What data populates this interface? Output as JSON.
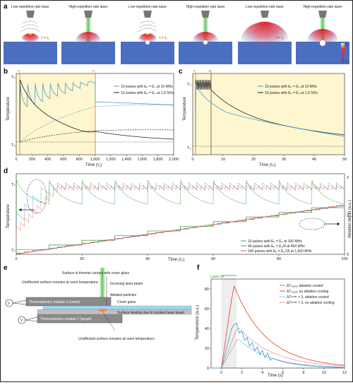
{
  "panel_a": {
    "label": "a",
    "titles": [
      "Low-repetition-rate laser",
      "High-repetition-rate laser",
      "Low-repetition-rate laser",
      "High-repetition-rate laser",
      "Low-repetition-rate laser",
      "High-repetition-rate laser"
    ],
    "t1": "t = τ₁",
    "t2": "t = τ₂",
    "legend_top": "Tₙ",
    "legend_bottom": "T₀"
  },
  "panel_b": {
    "label": "b",
    "ylabel": "Temperature",
    "xlabel": "Time (τ₁)",
    "y_top": "Tₙ",
    "y_bottom": "T₀",
    "tau1": "τ₁",
    "tau2": "τ₂",
    "xticks": [
      "0",
      "200",
      "400",
      "600",
      "800",
      "1,000",
      "1,200",
      "1,400",
      "1,600",
      "1,800",
      "2,000"
    ],
    "legend": [
      "10 pulses with Eₚ = E₀ at 10 MHz",
      "10 pulses with Eₚ = E₀ at 1.0 GHz"
    ]
  },
  "panel_c": {
    "label": "c",
    "ylabel": "Temperature",
    "xlabel": "Time (τ₂)",
    "y_top": "Tₙ",
    "y_bottom": "T₀",
    "tau1": "τ₁",
    "tau2": "τ₂",
    "xticks": [
      "0",
      "10",
      "20",
      "30",
      "40",
      "50"
    ],
    "legend": [
      "10 pulses with Eₚ = E₀ at 10 MHz",
      "10 pulses with Eₚ = E₀ at 1.0 GHz"
    ]
  },
  "panel_d": {
    "label": "d",
    "ylabel": "Temperature",
    "ylabel2": "Ablation depth (a.u.)",
    "xlabel": "Time (τ₂)",
    "y_top": "Tₙ",
    "y_bottom": "T₀",
    "xticks": [
      "0",
      "20",
      "40",
      "60",
      "80",
      "100"
    ],
    "y2ticks": [
      "0",
      "1",
      "2"
    ],
    "legend": [
      "10 pulses with Eₚ = E₀ at 100 MHz",
      "40 pulses with Eₚ = E₀/4 at 400 MHz",
      "160 pulses with Eₚ = E₀/16 at 1,600 MHz"
    ]
  },
  "panel_e": {
    "label": "e",
    "labels": [
      "Surface in thermal contact with cover glass",
      "Incoming laser beam",
      "Unaffected surface remains at room temperature",
      "Ablated particles",
      "Cover glass",
      "Thermoelectric module 2 (cover)",
      "Surface heating due to incident laser beam",
      "Thermoelectric module 1 (target)",
      "Unaffected surface remains at room temperature"
    ],
    "meter": "V"
  },
  "panel_f": {
    "label": "f",
    "ylabel": "Temperature (a.u.)",
    "xlabel": "Time (s)",
    "laser_on": "Laser on",
    "yticks": [
      "0",
      "20",
      "40",
      "60",
      "80"
    ],
    "xticks": [
      "0",
      "2",
      "4",
      "6",
      "8",
      "10",
      "12"
    ],
    "legend": [
      "ΔTₜₐᵣ₉ₑₜ ablation cooled",
      "ΔTₜₐᵣ₉ₑₜ no ablation cooling",
      "ΔTᶜᵒᵛᵉʳ × 3, ablation cooled",
      "ΔTᶜᵒᵛᵉʳ × 3, no ablation cooling"
    ],
    "colors": [
      "#4a9fd0",
      "#e0553a",
      "#4a9fd0",
      "#e0553a"
    ]
  },
  "colors": {
    "blue": "#4a9fd0",
    "red": "#e0553a",
    "green": "#4da84d",
    "yellow_bg": "#fdf6cf",
    "surface": "#4a6fc0"
  }
}
